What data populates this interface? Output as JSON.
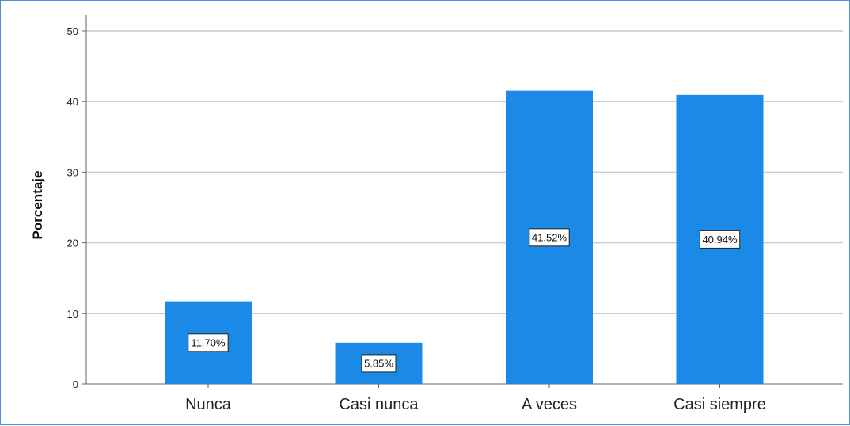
{
  "chart_data": {
    "type": "bar",
    "categories": [
      "Nunca",
      "Casi nunca",
      "A veces",
      "Casi siempre"
    ],
    "values": [
      11.7,
      5.85,
      41.52,
      40.94
    ],
    "data_labels": [
      "11.70%",
      "5.85%",
      "41.52%",
      "40.94%"
    ],
    "ylabel": "Porcentaje",
    "xlabel": "",
    "ylim": [
      0,
      50
    ],
    "yticks": [
      0,
      10,
      20,
      30,
      40,
      50
    ],
    "grid": true,
    "legend": "none",
    "colors": {
      "bar": "#1a8ae6",
      "grid": "#cccccc",
      "axis": "#666666"
    }
  }
}
